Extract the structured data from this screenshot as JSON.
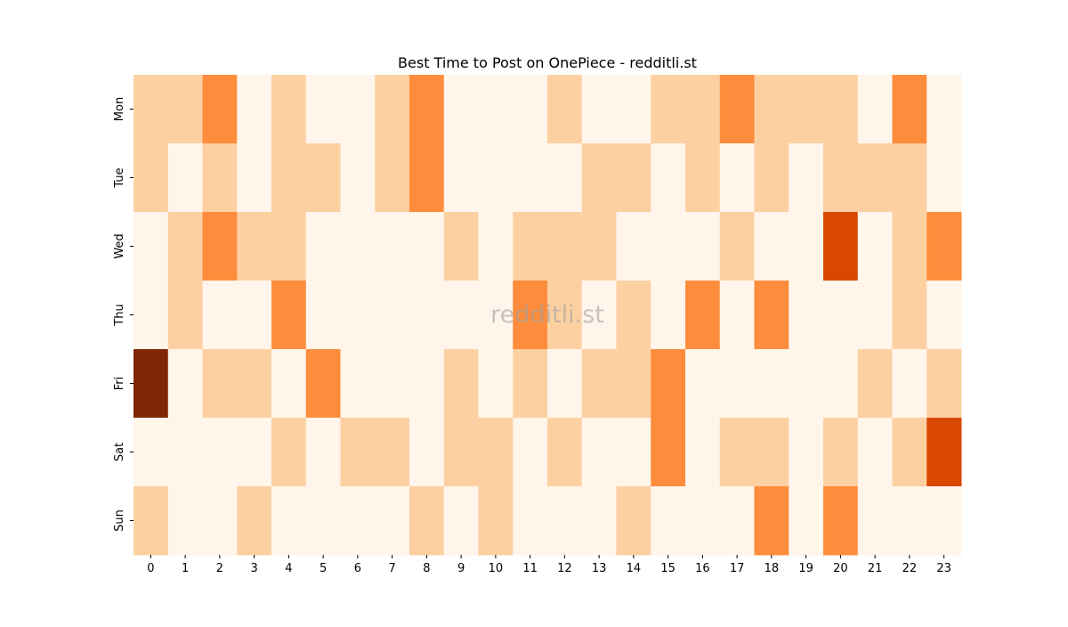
{
  "chart_data": {
    "type": "heatmap",
    "title": "Best Time to Post on OnePiece - redditli.st",
    "watermark": "redditli.st",
    "xlabel": "",
    "ylabel": "",
    "x_categories": [
      "0",
      "1",
      "2",
      "3",
      "4",
      "5",
      "6",
      "7",
      "8",
      "9",
      "10",
      "11",
      "12",
      "13",
      "14",
      "15",
      "16",
      "17",
      "18",
      "19",
      "20",
      "21",
      "22",
      "23"
    ],
    "y_categories": [
      "Mon",
      "Tue",
      "Wed",
      "Thu",
      "Fri",
      "Sat",
      "Sun"
    ],
    "colormap": "Oranges",
    "level_colors": [
      "#fff5eb",
      "#fdd0a2",
      "#fd8d3c",
      "#d94801",
      "#7f2704"
    ],
    "values": [
      [
        1,
        1,
        2,
        0,
        1,
        0,
        0,
        1,
        2,
        0,
        0,
        0,
        1,
        0,
        0,
        1,
        1,
        2,
        1,
        1,
        1,
        0,
        2,
        0
      ],
      [
        1,
        0,
        1,
        0,
        1,
        1,
        0,
        1,
        2,
        0,
        0,
        0,
        0,
        1,
        1,
        0,
        1,
        0,
        1,
        0,
        1,
        1,
        1,
        0
      ],
      [
        0,
        1,
        2,
        1,
        1,
        0,
        0,
        0,
        0,
        1,
        0,
        1,
        1,
        1,
        0,
        0,
        0,
        1,
        0,
        0,
        3,
        0,
        1,
        2
      ],
      [
        0,
        1,
        0,
        0,
        2,
        0,
        0,
        0,
        0,
        0,
        0,
        2,
        1,
        0,
        1,
        0,
        2,
        0,
        2,
        0,
        0,
        0,
        1,
        0
      ],
      [
        4,
        0,
        1,
        1,
        0,
        2,
        0,
        0,
        0,
        1,
        0,
        1,
        0,
        1,
        1,
        2,
        0,
        0,
        0,
        0,
        0,
        1,
        0,
        1
      ],
      [
        0,
        0,
        0,
        0,
        1,
        0,
        1,
        1,
        0,
        1,
        1,
        0,
        1,
        0,
        0,
        2,
        0,
        1,
        1,
        0,
        1,
        0,
        1,
        3
      ],
      [
        1,
        0,
        0,
        1,
        0,
        0,
        0,
        0,
        1,
        0,
        1,
        0,
        0,
        0,
        1,
        0,
        0,
        0,
        2,
        0,
        2,
        0,
        0,
        0
      ]
    ]
  }
}
